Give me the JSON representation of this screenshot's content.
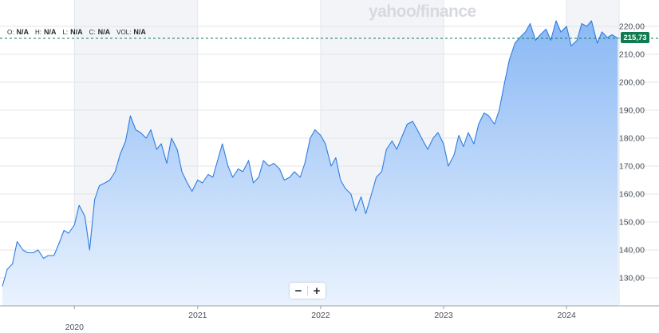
{
  "watermark": "yahoo/finance",
  "ohlc": [
    {
      "key": "O:",
      "value": "N/A"
    },
    {
      "key": "H:",
      "value": "N/A"
    },
    {
      "key": "L:",
      "value": "N/A"
    },
    {
      "key": "C:",
      "value": "N/A"
    },
    {
      "key": "VOL:",
      "value": "N/A"
    }
  ],
  "zoom": {
    "minus": "−",
    "plus": "+"
  },
  "last_price_label": "215,73",
  "colors": {
    "line": "#2f7de1",
    "fill_top": "#8ab8f5",
    "fill_bottom": "#eaf3fe",
    "band": "#f2f4f7",
    "grid": "#e3e6ea",
    "badge": "#0f7b4f"
  },
  "chart_data": {
    "type": "area",
    "title": "",
    "xlabel": "",
    "ylabel": "",
    "ylim": [
      120,
      225
    ],
    "yticks": [
      130,
      140,
      150,
      160,
      170,
      180,
      190,
      200,
      210,
      220
    ],
    "ytick_labels": [
      "130,00",
      "140,00",
      "150,00",
      "160,00",
      "170,00",
      "180,00",
      "190,00",
      "200,00",
      "210,00",
      "220,00"
    ],
    "xticks": [
      {
        "date": "2020-01-01",
        "label": "2020"
      },
      {
        "date": "2021-01-01",
        "label": "2021"
      },
      {
        "date": "2022-01-01",
        "label": "2022"
      },
      {
        "date": "2023-01-01",
        "label": "2023"
      },
      {
        "date": "2024-01-01",
        "label": "2024"
      }
    ],
    "last_value": 215.73,
    "grid": true,
    "series": [
      {
        "x": [
          "2019-06-01",
          "2019-06-15",
          "2019-07-01",
          "2019-07-15",
          "2019-08-01",
          "2019-08-15",
          "2019-09-01",
          "2019-09-15",
          "2019-10-01",
          "2019-10-15",
          "2019-11-01",
          "2019-11-15",
          "2019-12-01",
          "2019-12-15",
          "2020-01-01",
          "2020-01-15",
          "2020-02-01",
          "2020-02-15",
          "2020-03-01",
          "2020-03-15",
          "2020-04-01",
          "2020-04-15",
          "2020-05-01",
          "2020-05-15",
          "2020-06-01",
          "2020-06-15",
          "2020-07-01",
          "2020-07-15",
          "2020-08-01",
          "2020-08-15",
          "2020-09-01",
          "2020-09-15",
          "2020-10-01",
          "2020-10-15",
          "2020-11-01",
          "2020-11-15",
          "2020-12-01",
          "2020-12-15",
          "2021-01-01",
          "2021-01-15",
          "2021-02-01",
          "2021-02-15",
          "2021-03-01",
          "2021-03-15",
          "2021-04-01",
          "2021-04-15",
          "2021-05-01",
          "2021-05-15",
          "2021-06-01",
          "2021-06-15",
          "2021-07-01",
          "2021-07-15",
          "2021-08-01",
          "2021-08-15",
          "2021-09-01",
          "2021-09-15",
          "2021-10-01",
          "2021-10-15",
          "2021-11-01",
          "2021-11-15",
          "2021-12-01",
          "2021-12-15",
          "2022-01-01",
          "2022-01-15",
          "2022-02-01",
          "2022-02-15",
          "2022-03-01",
          "2022-03-15",
          "2022-04-01",
          "2022-04-15",
          "2022-05-01",
          "2022-05-15",
          "2022-06-01",
          "2022-06-15",
          "2022-07-01",
          "2022-07-15",
          "2022-08-01",
          "2022-08-15",
          "2022-09-01",
          "2022-09-15",
          "2022-10-01",
          "2022-10-15",
          "2022-11-01",
          "2022-11-15",
          "2022-12-01",
          "2022-12-15",
          "2023-01-01",
          "2023-01-15",
          "2023-02-01",
          "2023-02-15",
          "2023-03-01",
          "2023-03-15",
          "2023-04-01",
          "2023-04-15",
          "2023-05-01",
          "2023-05-15",
          "2023-06-01",
          "2023-06-15",
          "2023-07-01",
          "2023-07-15",
          "2023-08-01",
          "2023-08-15",
          "2023-09-01",
          "2023-09-15",
          "2023-10-01",
          "2023-10-15",
          "2023-11-01",
          "2023-11-15",
          "2023-12-01",
          "2023-12-15",
          "2024-01-01",
          "2024-01-15",
          "2024-02-01",
          "2024-02-15",
          "2024-03-01",
          "2024-03-15",
          "2024-04-01",
          "2024-04-15",
          "2024-05-01",
          "2024-05-15",
          "2024-06-01"
        ],
        "y": [
          127,
          133,
          135,
          143,
          140,
          139,
          139,
          140,
          137,
          138,
          138,
          142,
          147,
          146,
          149,
          156,
          152,
          140,
          158,
          163,
          164,
          165,
          168,
          174,
          179,
          188,
          183,
          182,
          180,
          183,
          176,
          178,
          171,
          180,
          176,
          168,
          164,
          161,
          165,
          164,
          167,
          166,
          172,
          178,
          170,
          166,
          169,
          168,
          172,
          164,
          166,
          172,
          170,
          171,
          169,
          165,
          166,
          168,
          166,
          171,
          180,
          183,
          181,
          178,
          170,
          173,
          165,
          162,
          160,
          154,
          159,
          153,
          160,
          166,
          168,
          176,
          179,
          176,
          181,
          185,
          186,
          183,
          179,
          176,
          180,
          182,
          178,
          170,
          174,
          181,
          177,
          182,
          178,
          185,
          189,
          188,
          185,
          190,
          200,
          208,
          214,
          216,
          218,
          221,
          215,
          217,
          219,
          215,
          222,
          218,
          220,
          213,
          215,
          221,
          220,
          222,
          214,
          218,
          216,
          217,
          215.73
        ]
      }
    ]
  }
}
